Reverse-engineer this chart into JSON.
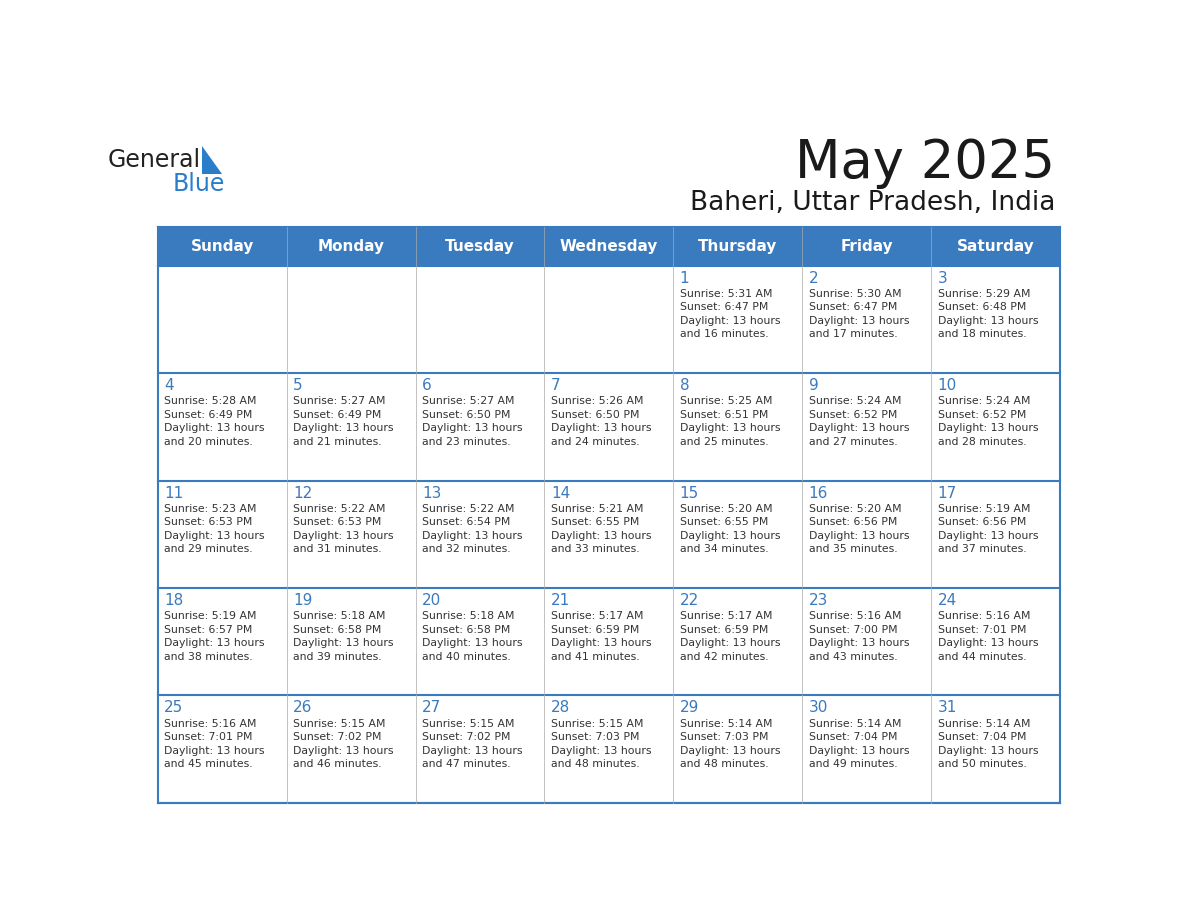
{
  "title": "May 2025",
  "subtitle": "Baheri, Uttar Pradesh, India",
  "days_of_week": [
    "Sunday",
    "Monday",
    "Tuesday",
    "Wednesday",
    "Thursday",
    "Friday",
    "Saturday"
  ],
  "header_bg": "#3a7abf",
  "header_text": "#ffffff",
  "grid_line_color": "#3a7abf",
  "inner_line_color": "#aaaaaa",
  "day_num_color": "#3a7abf",
  "text_color": "#333333",
  "calendar_data": [
    [
      null,
      null,
      null,
      null,
      {
        "day": 1,
        "sunrise": "5:31 AM",
        "sunset": "6:47 PM",
        "daylight": "13 hours and 16 minutes."
      },
      {
        "day": 2,
        "sunrise": "5:30 AM",
        "sunset": "6:47 PM",
        "daylight": "13 hours and 17 minutes."
      },
      {
        "day": 3,
        "sunrise": "5:29 AM",
        "sunset": "6:48 PM",
        "daylight": "13 hours and 18 minutes."
      }
    ],
    [
      {
        "day": 4,
        "sunrise": "5:28 AM",
        "sunset": "6:49 PM",
        "daylight": "13 hours and 20 minutes."
      },
      {
        "day": 5,
        "sunrise": "5:27 AM",
        "sunset": "6:49 PM",
        "daylight": "13 hours and 21 minutes."
      },
      {
        "day": 6,
        "sunrise": "5:27 AM",
        "sunset": "6:50 PM",
        "daylight": "13 hours and 23 minutes."
      },
      {
        "day": 7,
        "sunrise": "5:26 AM",
        "sunset": "6:50 PM",
        "daylight": "13 hours and 24 minutes."
      },
      {
        "day": 8,
        "sunrise": "5:25 AM",
        "sunset": "6:51 PM",
        "daylight": "13 hours and 25 minutes."
      },
      {
        "day": 9,
        "sunrise": "5:24 AM",
        "sunset": "6:52 PM",
        "daylight": "13 hours and 27 minutes."
      },
      {
        "day": 10,
        "sunrise": "5:24 AM",
        "sunset": "6:52 PM",
        "daylight": "13 hours and 28 minutes."
      }
    ],
    [
      {
        "day": 11,
        "sunrise": "5:23 AM",
        "sunset": "6:53 PM",
        "daylight": "13 hours and 29 minutes."
      },
      {
        "day": 12,
        "sunrise": "5:22 AM",
        "sunset": "6:53 PM",
        "daylight": "13 hours and 31 minutes."
      },
      {
        "day": 13,
        "sunrise": "5:22 AM",
        "sunset": "6:54 PM",
        "daylight": "13 hours and 32 minutes."
      },
      {
        "day": 14,
        "sunrise": "5:21 AM",
        "sunset": "6:55 PM",
        "daylight": "13 hours and 33 minutes."
      },
      {
        "day": 15,
        "sunrise": "5:20 AM",
        "sunset": "6:55 PM",
        "daylight": "13 hours and 34 minutes."
      },
      {
        "day": 16,
        "sunrise": "5:20 AM",
        "sunset": "6:56 PM",
        "daylight": "13 hours and 35 minutes."
      },
      {
        "day": 17,
        "sunrise": "5:19 AM",
        "sunset": "6:56 PM",
        "daylight": "13 hours and 37 minutes."
      }
    ],
    [
      {
        "day": 18,
        "sunrise": "5:19 AM",
        "sunset": "6:57 PM",
        "daylight": "13 hours and 38 minutes."
      },
      {
        "day": 19,
        "sunrise": "5:18 AM",
        "sunset": "6:58 PM",
        "daylight": "13 hours and 39 minutes."
      },
      {
        "day": 20,
        "sunrise": "5:18 AM",
        "sunset": "6:58 PM",
        "daylight": "13 hours and 40 minutes."
      },
      {
        "day": 21,
        "sunrise": "5:17 AM",
        "sunset": "6:59 PM",
        "daylight": "13 hours and 41 minutes."
      },
      {
        "day": 22,
        "sunrise": "5:17 AM",
        "sunset": "6:59 PM",
        "daylight": "13 hours and 42 minutes."
      },
      {
        "day": 23,
        "sunrise": "5:16 AM",
        "sunset": "7:00 PM",
        "daylight": "13 hours and 43 minutes."
      },
      {
        "day": 24,
        "sunrise": "5:16 AM",
        "sunset": "7:01 PM",
        "daylight": "13 hours and 44 minutes."
      }
    ],
    [
      {
        "day": 25,
        "sunrise": "5:16 AM",
        "sunset": "7:01 PM",
        "daylight": "13 hours and 45 minutes."
      },
      {
        "day": 26,
        "sunrise": "5:15 AM",
        "sunset": "7:02 PM",
        "daylight": "13 hours and 46 minutes."
      },
      {
        "day": 27,
        "sunrise": "5:15 AM",
        "sunset": "7:02 PM",
        "daylight": "13 hours and 47 minutes."
      },
      {
        "day": 28,
        "sunrise": "5:15 AM",
        "sunset": "7:03 PM",
        "daylight": "13 hours and 48 minutes."
      },
      {
        "day": 29,
        "sunrise": "5:14 AM",
        "sunset": "7:03 PM",
        "daylight": "13 hours and 48 minutes."
      },
      {
        "day": 30,
        "sunrise": "5:14 AM",
        "sunset": "7:04 PM",
        "daylight": "13 hours and 49 minutes."
      },
      {
        "day": 31,
        "sunrise": "5:14 AM",
        "sunset": "7:04 PM",
        "daylight": "13 hours and 50 minutes."
      }
    ]
  ],
  "logo_general_color": "#222222",
  "logo_blue_color": "#2a7dc9",
  "logo_triangle_color": "#2a7dc9"
}
